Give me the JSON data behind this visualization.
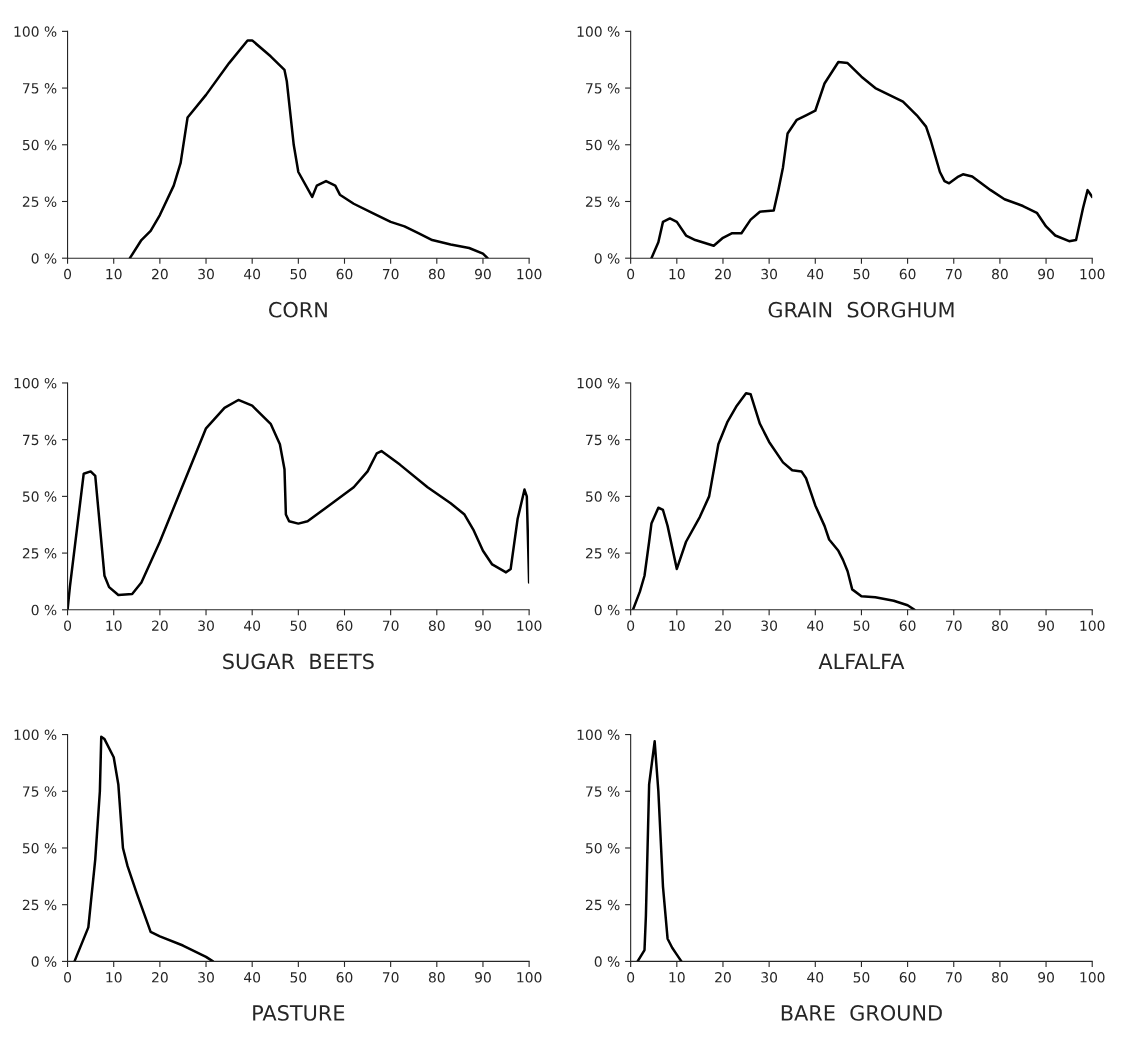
{
  "chart_data": [
    {
      "type": "line",
      "xlabel": "CORN",
      "xlim": [
        0,
        100
      ],
      "ylim": [
        0,
        100
      ],
      "xticks": [
        0,
        10,
        20,
        30,
        40,
        50,
        60,
        70,
        80,
        90,
        100
      ],
      "yticks": [
        {
          "value": 0,
          "label": "0 %"
        },
        {
          "value": 25,
          "label": "25 %"
        },
        {
          "value": 50,
          "label": "50 %"
        },
        {
          "value": 75,
          "label": "75 %"
        },
        {
          "value": 100,
          "label": "100 %"
        }
      ],
      "grid": false,
      "series": [
        {
          "color": "#000000",
          "x": [
            13.5,
            16,
            18,
            20,
            23,
            24.5,
            26,
            30,
            35,
            39,
            40,
            44,
            47,
            47.5,
            49,
            50,
            53,
            54,
            56,
            58,
            59,
            62,
            66,
            70,
            73,
            76,
            79,
            83,
            87,
            90,
            91
          ],
          "values": [
            0,
            8,
            12,
            19,
            32,
            42,
            62,
            72,
            86,
            96,
            96,
            89,
            83,
            78,
            50,
            38,
            27,
            32,
            34,
            32,
            28,
            24,
            20,
            16,
            14,
            11,
            8,
            6,
            4.5,
            2,
            0
          ]
        }
      ]
    },
    {
      "type": "line",
      "xlabel": "GRAIN  SORGHUM",
      "xlim": [
        0,
        100
      ],
      "ylim": [
        0,
        100
      ],
      "xticks": [
        0,
        10,
        20,
        30,
        40,
        50,
        60,
        70,
        80,
        90,
        100
      ],
      "yticks": [
        {
          "value": 0,
          "label": "0 %"
        },
        {
          "value": 25,
          "label": "25 %"
        },
        {
          "value": 50,
          "label": "50 %"
        },
        {
          "value": 75,
          "label": "75 %"
        },
        {
          "value": 100,
          "label": "100 %"
        }
      ],
      "grid": false,
      "series": [
        {
          "color": "#000000",
          "x": [
            4.5,
            6,
            7,
            8.5,
            10,
            12,
            14,
            18,
            20,
            22,
            24,
            26,
            28,
            31,
            32,
            33,
            34,
            36,
            38,
            40,
            42,
            45,
            47,
            50,
            53,
            56,
            59,
            62,
            64,
            65,
            66,
            67,
            68,
            69,
            71,
            72,
            74,
            78,
            81,
            85,
            88,
            90,
            92,
            95,
            96.5,
            98,
            99,
            100
          ],
          "values": [
            0,
            7,
            16,
            17.5,
            16,
            10,
            8,
            5.5,
            9,
            11,
            11,
            17,
            20.5,
            21,
            30,
            40,
            55,
            61,
            63,
            65,
            77,
            86.5,
            86,
            80,
            75,
            72,
            69,
            63,
            58,
            52,
            45,
            38,
            34,
            33,
            36,
            37,
            36,
            30,
            26,
            23,
            20,
            14,
            10,
            7.5,
            8,
            22,
            30,
            27
          ]
        }
      ]
    },
    {
      "type": "line",
      "xlabel": "SUGAR  BEETS",
      "xlim": [
        0,
        100
      ],
      "ylim": [
        0,
        100
      ],
      "xticks": [
        0,
        10,
        20,
        30,
        40,
        50,
        60,
        70,
        80,
        90,
        100
      ],
      "yticks": [
        {
          "value": 0,
          "label": "0 %"
        },
        {
          "value": 25,
          "label": "25 %"
        },
        {
          "value": 50,
          "label": "50 %"
        },
        {
          "value": 75,
          "label": "75 %"
        },
        {
          "value": 100,
          "label": "100 %"
        }
      ],
      "grid": false,
      "series": [
        {
          "color": "#000000",
          "x": [
            0,
            0.5,
            3.5,
            5,
            6,
            8,
            9,
            11,
            14,
            16,
            20,
            25,
            30,
            34,
            37,
            40,
            44,
            46,
            47,
            47.3,
            48,
            50,
            52,
            56,
            62,
            65,
            67,
            68,
            72,
            78,
            83,
            86,
            88,
            90,
            92,
            95,
            96,
            97.5,
            99,
            99.5,
            100
          ],
          "values": [
            0,
            10,
            60,
            61,
            59,
            15,
            10,
            6.5,
            7,
            12,
            30,
            55,
            80,
            89,
            92.5,
            90,
            82,
            73,
            62,
            42,
            39,
            38,
            39,
            45,
            54,
            61,
            69,
            70,
            64,
            54,
            47,
            42,
            35,
            26,
            20,
            16.5,
            18,
            40,
            53,
            50,
            12
          ]
        }
      ]
    },
    {
      "type": "line",
      "xlabel": "ALFALFA",
      "xlim": [
        0,
        100
      ],
      "ylim": [
        0,
        100
      ],
      "xticks": [
        0,
        10,
        20,
        30,
        40,
        50,
        60,
        70,
        80,
        90,
        100
      ],
      "yticks": [
        {
          "value": 0,
          "label": "0 %"
        },
        {
          "value": 25,
          "label": "25 %"
        },
        {
          "value": 50,
          "label": "50 %"
        },
        {
          "value": 75,
          "label": "75 %"
        },
        {
          "value": 100,
          "label": "100 %"
        }
      ],
      "grid": false,
      "series": [
        {
          "color": "#000000",
          "x": [
            0.5,
            2,
            3,
            4,
            4.5,
            6,
            7,
            8,
            10,
            12,
            15,
            17,
            19,
            21,
            23,
            25,
            26,
            28,
            30,
            33,
            35,
            37,
            38,
            40,
            42,
            43,
            45,
            46,
            47,
            48,
            50,
            53,
            57,
            60,
            61.5
          ],
          "values": [
            0,
            8,
            15,
            30,
            38,
            45,
            44,
            37,
            18,
            30,
            41,
            50,
            73,
            83,
            90,
            95.5,
            95,
            82,
            74,
            65,
            61.5,
            61,
            58,
            46,
            37,
            31,
            26,
            22,
            17,
            9,
            6,
            5.5,
            4,
            2,
            0
          ]
        }
      ]
    },
    {
      "type": "line",
      "xlabel": "PASTURE",
      "xlim": [
        0,
        100
      ],
      "ylim": [
        0,
        100
      ],
      "xticks": [
        0,
        10,
        20,
        30,
        40,
        50,
        60,
        70,
        80,
        90,
        100
      ],
      "yticks": [
        {
          "value": 0,
          "label": "0 %"
        },
        {
          "value": 25,
          "label": "25 %"
        },
        {
          "value": 50,
          "label": "50 %"
        },
        {
          "value": 75,
          "label": "75 %"
        },
        {
          "value": 100,
          "label": "100 %"
        }
      ],
      "grid": false,
      "series": [
        {
          "color": "#000000",
          "x": [
            1.5,
            4.5,
            5,
            6,
            7,
            7.3,
            8,
            10,
            11,
            12,
            13,
            15,
            18,
            20,
            25,
            29,
            30,
            31.5
          ],
          "values": [
            0,
            15,
            25,
            45,
            75,
            99,
            98,
            90,
            78,
            50,
            42,
            30,
            13,
            11,
            7,
            3,
            2,
            0
          ]
        }
      ]
    },
    {
      "type": "line",
      "xlabel": "BARE  GROUND",
      "xlim": [
        0,
        100
      ],
      "ylim": [
        0,
        100
      ],
      "xticks": [
        0,
        10,
        20,
        30,
        40,
        50,
        60,
        70,
        80,
        90,
        100
      ],
      "yticks": [
        {
          "value": 0,
          "label": "0 %"
        },
        {
          "value": 25,
          "label": "25 %"
        },
        {
          "value": 50,
          "label": "50 %"
        },
        {
          "value": 75,
          "label": "75 %"
        },
        {
          "value": 100,
          "label": "100 %"
        }
      ],
      "grid": false,
      "series": [
        {
          "color": "#000000",
          "x": [
            1.5,
            3,
            3.3,
            4,
            5.2,
            6,
            7,
            8,
            9,
            10,
            11
          ],
          "values": [
            0,
            5,
            20,
            78,
            97,
            75,
            33,
            10,
            6,
            3,
            0
          ]
        }
      ]
    }
  ]
}
